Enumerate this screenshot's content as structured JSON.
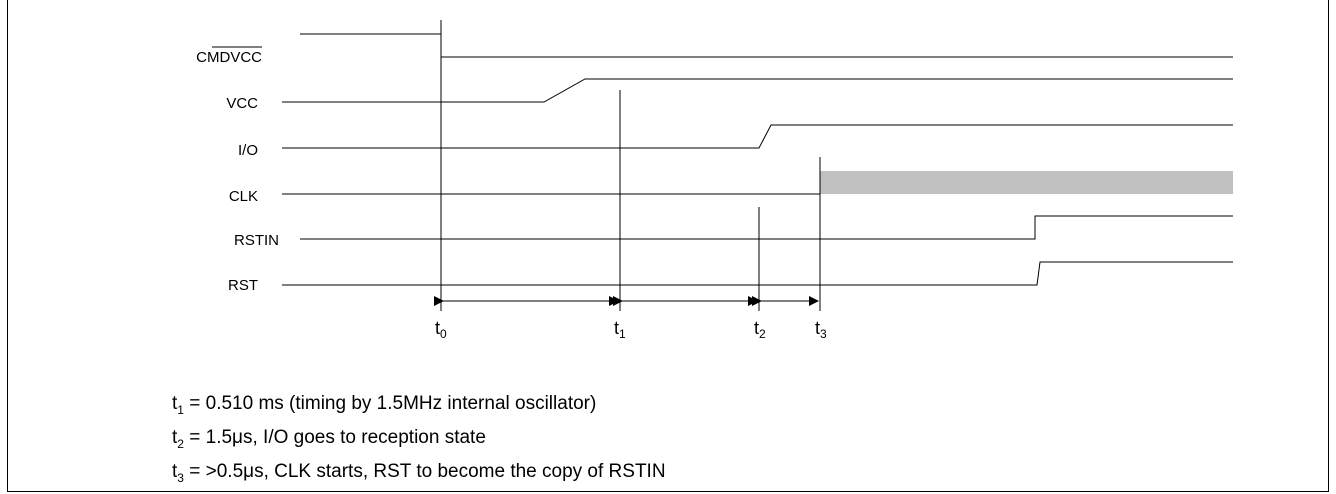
{
  "signals": [
    {
      "id": "cmdvcc",
      "label": "CMDVCC",
      "overline": true
    },
    {
      "id": "vcc",
      "label": "VCC"
    },
    {
      "id": "io",
      "label": "I/O"
    },
    {
      "id": "clk",
      "label": "CLK"
    },
    {
      "id": "rstin",
      "label": "RSTIN"
    },
    {
      "id": "rst",
      "label": "RST"
    }
  ],
  "time_markers": [
    {
      "id": "t0",
      "base": "t",
      "sub": "0"
    },
    {
      "id": "t1",
      "base": "t",
      "sub": "1"
    },
    {
      "id": "t2",
      "base": "t",
      "sub": "2"
    },
    {
      "id": "t3",
      "base": "t",
      "sub": "3"
    }
  ],
  "notes": [
    {
      "base": "t",
      "sub": "1",
      "text": " = 0.510 ms (timing by 1.5MHz internal oscillator)"
    },
    {
      "base": "t",
      "sub": "2",
      "text": " = 1.5μs, I/O goes to reception state"
    },
    {
      "base": "t",
      "sub": "3",
      "text": " = >0.5μs, CLK starts, RST to become the copy of RSTIN"
    }
  ],
  "colors": {
    "clk_active": "#c0c0c0",
    "line": "#000000"
  }
}
